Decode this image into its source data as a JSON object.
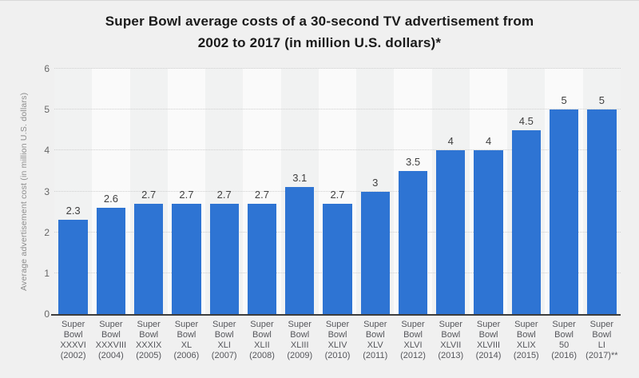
{
  "chart": {
    "title_lines": [
      "Super Bowl average costs of a 30-second TV advertisement from",
      "2002 to 2017 (in million U.S. dollars)*"
    ],
    "ylabel": "Average advertisement cost (in million U.S. dollars)"
  },
  "chart_data": {
    "type": "bar",
    "title": "Super Bowl average costs of a 30-second TV advertisement from 2002 to 2017 (in million U.S. dollars)*",
    "xlabel": "",
    "ylabel": "Average advertisement cost (in million U.S. dollars)",
    "ylim": [
      0,
      6
    ],
    "y_ticks": [
      0,
      1,
      2,
      3,
      4,
      5,
      6
    ],
    "grid": "horizontal-dotted",
    "legend": "none",
    "categories": [
      "Super Bowl XXXVI (2002)",
      "Super Bowl XXXVIII (2004)",
      "Super Bowl XXXIX (2005)",
      "Super Bowl XL (2006)",
      "Super Bowl XLI (2007)",
      "Super Bowl XLII (2008)",
      "Super Bowl XLIII (2009)",
      "Super Bowl XLIV (2010)",
      "Super Bowl XLV (2011)",
      "Super Bowl XLVI (2012)",
      "Super Bowl XLVII (2013)",
      "Super Bowl XLVIII (2014)",
      "Super Bowl XLIX (2015)",
      "Super Bowl 50 (2016)",
      "Super Bowl LI (2017)**"
    ],
    "category_lines": [
      [
        "Super",
        "Bowl",
        "XXXVI",
        "(2002)"
      ],
      [
        "Super",
        "Bowl",
        "XXXVIII",
        "(2004)"
      ],
      [
        "Super",
        "Bowl",
        "XXXIX",
        "(2005)"
      ],
      [
        "Super",
        "Bowl",
        "XL",
        "(2006)"
      ],
      [
        "Super",
        "Bowl",
        "XLI",
        "(2007)"
      ],
      [
        "Super",
        "Bowl",
        "XLII",
        "(2008)"
      ],
      [
        "Super",
        "Bowl",
        "XLIII",
        "(2009)"
      ],
      [
        "Super",
        "Bowl",
        "XLIV",
        "(2010)"
      ],
      [
        "Super",
        "Bowl",
        "XLV",
        "(2011)"
      ],
      [
        "Super",
        "Bowl",
        "XLVI",
        "(2012)"
      ],
      [
        "Super",
        "Bowl",
        "XLVII",
        "(2013)"
      ],
      [
        "Super",
        "Bowl",
        "XLVIII",
        "(2014)"
      ],
      [
        "Super",
        "Bowl",
        "XLIX",
        "(2015)"
      ],
      [
        "Super",
        "Bowl",
        "50",
        "(2016)"
      ],
      [
        "Super",
        "Bowl",
        "LI",
        "(2017)**"
      ]
    ],
    "values": [
      2.3,
      2.6,
      2.7,
      2.7,
      2.7,
      2.7,
      3.1,
      2.7,
      3,
      3.5,
      4,
      4,
      4.5,
      5,
      5
    ],
    "value_labels": [
      "2.3",
      "2.6",
      "2.7",
      "2.7",
      "2.7",
      "2.7",
      "3.1",
      "2.7",
      "3",
      "3.5",
      "4",
      "4",
      "4.5",
      "5",
      "5"
    ],
    "colors": {
      "bar": "#2e74d3",
      "background": "#f0f0f0",
      "band_even": "#f1f2f2",
      "band_odd": "#fafafa",
      "grid": "#cfcfcf",
      "axis_line": "#3d3d3d",
      "title": "#1a1a1a",
      "value_label": "#3f3f3f",
      "tick_label": "#55565b",
      "y_tick": "#666666",
      "y_axis_title": "#8c8c8c"
    }
  }
}
